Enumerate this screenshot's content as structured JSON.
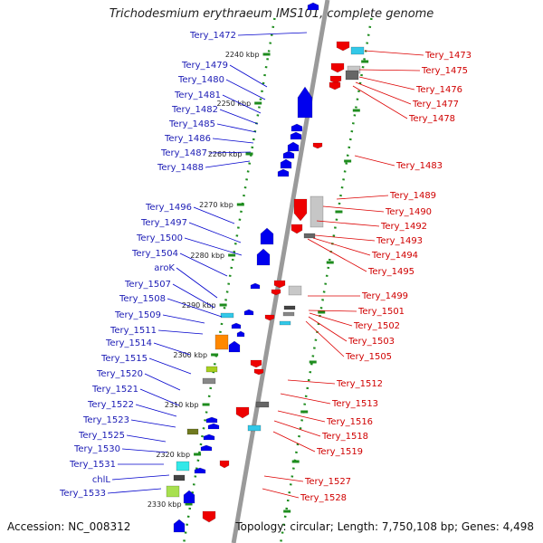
{
  "title": "Trichodesmium erythraeum IMS101, complete genome",
  "accession": "Accession: NC_008312",
  "topology": "Topology: circular; Length: 7,750,108 bp; Genes: 4,498",
  "colors": {
    "forward": "#0000ee",
    "reverse": "#ee0000",
    "backbone": "#9a9a9a",
    "ruler": "#1e8c1e"
  },
  "ruler_ticks": [
    "2240 kbp",
    "2250 kbp",
    "2260 kbp",
    "2270 kbp",
    "2280 kbp",
    "2290 kbp",
    "2300 kbp",
    "2310 kbp",
    "2320 kbp",
    "2330 kbp"
  ],
  "left_labels": [
    "Tery_1472",
    "Tery_1479",
    "Tery_1480",
    "Tery_1481",
    "Tery_1482",
    "Tery_1485",
    "Tery_1486",
    "Tery_1487",
    "Tery_1488",
    "Tery_1496",
    "Tery_1497",
    "Tery_1500",
    "Tery_1504",
    "aroK",
    "Tery_1507",
    "Tery_1508",
    "Tery_1509",
    "Tery_1511",
    "Tery_1514",
    "Tery_1515",
    "Tery_1520",
    "Tery_1521",
    "Tery_1522",
    "Tery_1523",
    "Tery_1525",
    "Tery_1530",
    "Tery_1531",
    "chlL",
    "Tery_1533"
  ],
  "right_labels": [
    "Tery_1473",
    "Tery_1475",
    "Tery_1476",
    "Tery_1477",
    "Tery_1478",
    "Tery_1483",
    "Tery_1489",
    "Tery_1490",
    "Tery_1492",
    "Tery_1493",
    "Tery_1494",
    "Tery_1495",
    "Tery_1499",
    "Tery_1501",
    "Tery_1502",
    "Tery_1503",
    "Tery_1505",
    "Tery_1512",
    "Tery_1513",
    "Tery_1516",
    "Tery_1518",
    "Tery_1519",
    "Tery_1527",
    "Tery_1528"
  ]
}
